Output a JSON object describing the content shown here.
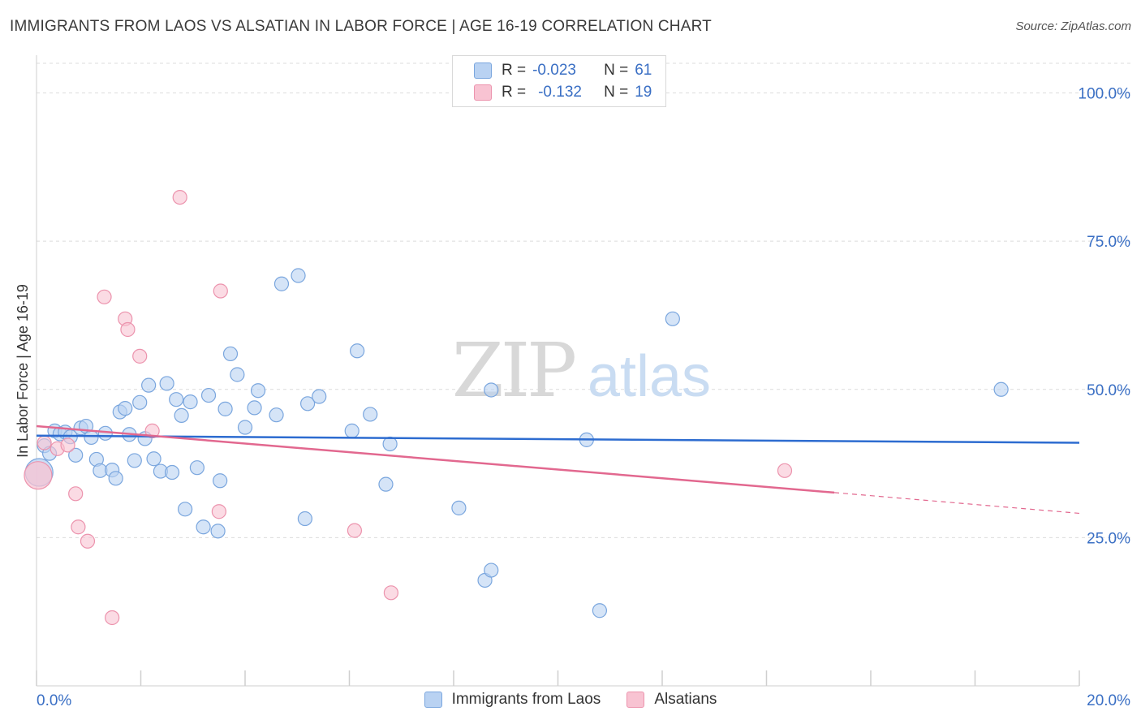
{
  "title": "IMMIGRANTS FROM LAOS VS ALSATIAN IN LABOR FORCE | AGE 16-19 CORRELATION CHART",
  "source": "Source: ZipAtlas.com",
  "legend": {
    "rows": [
      {
        "r_label": "R =",
        "r_value": "-0.023",
        "n_label": "N =",
        "n_value": "61"
      },
      {
        "r_label": "R =",
        "r_value": "-0.132",
        "n_label": "N =",
        "n_value": "19"
      }
    ]
  },
  "watermark": {
    "zip": "ZIP",
    "atlas": "atlas"
  },
  "colors": {
    "blue_fill": "#b9d2f2",
    "blue_stroke": "#7aa6de",
    "blue_line": "#2d6cd0",
    "pink_fill": "#f8c3d2",
    "pink_stroke": "#ec93ad",
    "pink_line": "#e2688f",
    "tick_label": "#3a6fc4",
    "grid": "#dcdcdc"
  },
  "chart_data": {
    "type": "scatter",
    "title": "IMMIGRANTS FROM LAOS VS ALSATIAN IN LABOR FORCE | AGE 16-19 CORRELATION CHART",
    "xlabel": "",
    "ylabel": "In Labor Force | Age 16-19",
    "xlim": [
      0,
      20
    ],
    "ylim": [
      0,
      105
    ],
    "x_tick_labels": [
      {
        "value": 0,
        "label": "0.0%"
      },
      {
        "value": 20,
        "label": "20.0%"
      }
    ],
    "y_tick_labels": [
      {
        "value": 25,
        "label": "25.0%"
      },
      {
        "value": 50,
        "label": "50.0%"
      },
      {
        "value": 75,
        "label": "75.0%"
      },
      {
        "value": 100,
        "label": "100.0%"
      }
    ],
    "grid": true,
    "legend_position": "top-center",
    "series": [
      {
        "name": "Immigrants from Laos",
        "color": "#b9d2f2",
        "trend": {
          "x0": 0,
          "y0": 42.2,
          "x1": 20,
          "y1": 41.0
        },
        "points": [
          {
            "x": 0.05,
            "y": 36.0,
            "big": true
          },
          {
            "x": 0.15,
            "y": 40.5
          },
          {
            "x": 0.25,
            "y": 39.2
          },
          {
            "x": 0.35,
            "y": 43.0
          },
          {
            "x": 0.45,
            "y": 42.5
          },
          {
            "x": 0.55,
            "y": 42.8
          },
          {
            "x": 0.65,
            "y": 42.0
          },
          {
            "x": 0.75,
            "y": 38.9
          },
          {
            "x": 0.85,
            "y": 43.5
          },
          {
            "x": 0.95,
            "y": 43.8
          },
          {
            "x": 1.05,
            "y": 41.9
          },
          {
            "x": 1.15,
            "y": 38.2
          },
          {
            "x": 1.22,
            "y": 36.3
          },
          {
            "x": 1.32,
            "y": 42.6
          },
          {
            "x": 1.45,
            "y": 36.4
          },
          {
            "x": 1.52,
            "y": 35.0
          },
          {
            "x": 1.6,
            "y": 46.2
          },
          {
            "x": 1.7,
            "y": 46.8
          },
          {
            "x": 1.78,
            "y": 42.4
          },
          {
            "x": 1.88,
            "y": 38.0
          },
          {
            "x": 1.98,
            "y": 47.8
          },
          {
            "x": 2.08,
            "y": 41.7
          },
          {
            "x": 2.15,
            "y": 50.7
          },
          {
            "x": 2.25,
            "y": 38.3
          },
          {
            "x": 2.38,
            "y": 36.2
          },
          {
            "x": 2.5,
            "y": 51.0
          },
          {
            "x": 2.6,
            "y": 36.0
          },
          {
            "x": 2.68,
            "y": 48.3
          },
          {
            "x": 2.78,
            "y": 45.6
          },
          {
            "x": 2.85,
            "y": 29.8
          },
          {
            "x": 2.95,
            "y": 47.9
          },
          {
            "x": 3.08,
            "y": 36.8
          },
          {
            "x": 3.2,
            "y": 26.8
          },
          {
            "x": 3.3,
            "y": 49.0
          },
          {
            "x": 3.48,
            "y": 26.1
          },
          {
            "x": 3.52,
            "y": 34.6
          },
          {
            "x": 3.62,
            "y": 46.7
          },
          {
            "x": 3.72,
            "y": 56.0
          },
          {
            "x": 3.85,
            "y": 52.5
          },
          {
            "x": 4.0,
            "y": 43.6
          },
          {
            "x": 4.18,
            "y": 46.9
          },
          {
            "x": 4.25,
            "y": 49.8
          },
          {
            "x": 4.6,
            "y": 45.7
          },
          {
            "x": 4.7,
            "y": 67.8
          },
          {
            "x": 5.02,
            "y": 69.2
          },
          {
            "x": 5.15,
            "y": 28.2
          },
          {
            "x": 5.2,
            "y": 47.6
          },
          {
            "x": 5.42,
            "y": 48.8
          },
          {
            "x": 6.05,
            "y": 43.0
          },
          {
            "x": 6.15,
            "y": 56.5
          },
          {
            "x": 6.4,
            "y": 45.8
          },
          {
            "x": 6.7,
            "y": 34.0
          },
          {
            "x": 6.78,
            "y": 40.8
          },
          {
            "x": 8.1,
            "y": 30.0
          },
          {
            "x": 8.6,
            "y": 17.8
          },
          {
            "x": 8.72,
            "y": 19.5
          },
          {
            "x": 8.72,
            "y": 49.9
          },
          {
            "x": 10.55,
            "y": 41.5
          },
          {
            "x": 10.8,
            "y": 12.7
          },
          {
            "x": 12.2,
            "y": 61.9
          },
          {
            "x": 18.5,
            "y": 50.0
          }
        ]
      },
      {
        "name": "Alsatians",
        "color": "#f8c3d2",
        "trend": {
          "x0": 0,
          "y0": 43.8,
          "x1": 15.3,
          "y1": 32.6
        },
        "trend_dashed": {
          "x0": 15.3,
          "y0": 32.6,
          "x1": 20,
          "y1": 29.1
        },
        "points": [
          {
            "x": 0.03,
            "y": 35.5,
            "big": true
          },
          {
            "x": 0.15,
            "y": 41.0
          },
          {
            "x": 0.4,
            "y": 40.0
          },
          {
            "x": 0.6,
            "y": 40.6
          },
          {
            "x": 0.75,
            "y": 32.4
          },
          {
            "x": 0.8,
            "y": 26.8
          },
          {
            "x": 0.98,
            "y": 24.4
          },
          {
            "x": 1.45,
            "y": 11.5
          },
          {
            "x": 1.3,
            "y": 65.6
          },
          {
            "x": 1.7,
            "y": 61.9
          },
          {
            "x": 1.75,
            "y": 60.1
          },
          {
            "x": 1.98,
            "y": 55.6
          },
          {
            "x": 2.22,
            "y": 43.0
          },
          {
            "x": 2.75,
            "y": 82.4
          },
          {
            "x": 3.5,
            "y": 29.4
          },
          {
            "x": 3.53,
            "y": 66.6
          },
          {
            "x": 6.1,
            "y": 26.2
          },
          {
            "x": 6.8,
            "y": 15.7
          },
          {
            "x": 14.35,
            "y": 36.3
          }
        ]
      }
    ]
  }
}
